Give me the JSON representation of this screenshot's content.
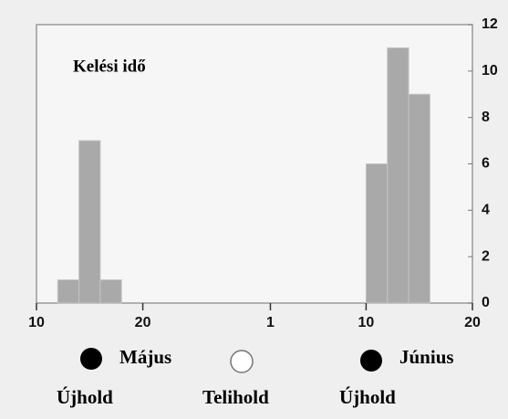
{
  "chart_data": {
    "type": "histogram",
    "title": "Kelési idő",
    "bins": [
      12,
      14,
      16,
      18,
      41,
      43,
      45,
      47
    ],
    "counts": [
      1,
      7,
      1,
      0,
      6,
      11,
      9
    ],
    "color": "#a9a9a9",
    "xlim": [
      10,
      51
    ],
    "xticks": [
      {
        "value": 10,
        "label": "10"
      },
      {
        "value": 20,
        "label": "20"
      },
      {
        "value": 32,
        "label": "1"
      },
      {
        "value": 41,
        "label": "10"
      },
      {
        "value": 51,
        "label": "20"
      }
    ],
    "ylim": [
      0,
      12
    ],
    "yticks": [
      0,
      2,
      4,
      6,
      8,
      10,
      12
    ],
    "y_axis_side": "right",
    "annotations": {
      "may": "Május",
      "june": "Június",
      "new_moon_1": "Újhold",
      "full_moon": "Telihold",
      "new_moon_2": "Újhold"
    }
  }
}
